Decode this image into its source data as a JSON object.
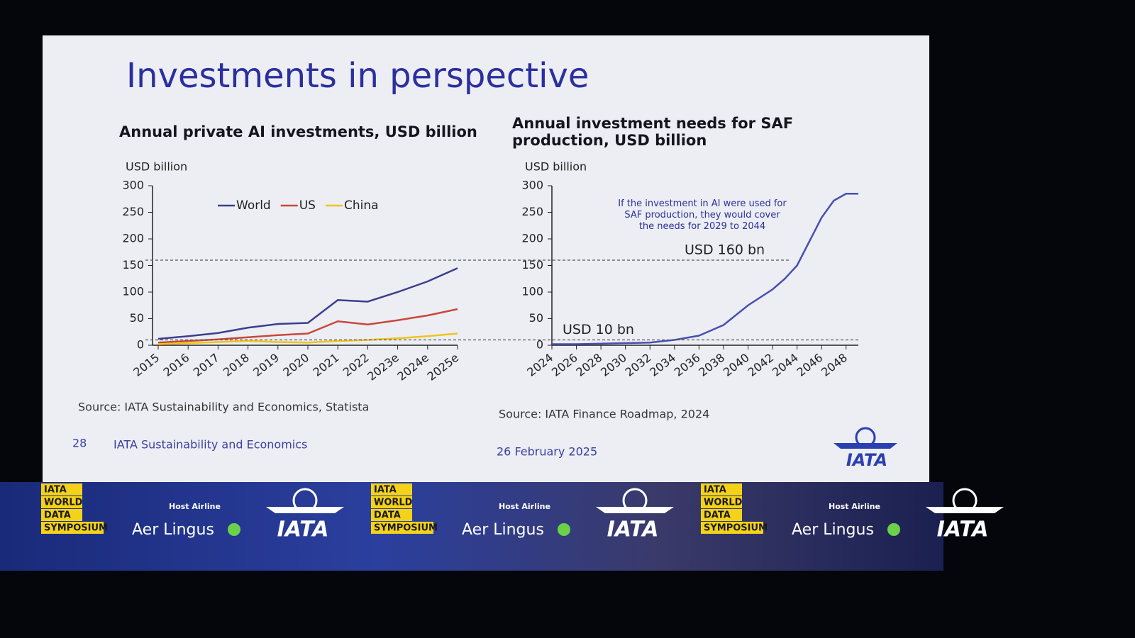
{
  "title": "Investments in perspective",
  "chart_data": [
    {
      "type": "line",
      "title": "Annual private AI investments, USD billion",
      "y_label": "USD billion",
      "categories": [
        "2015",
        "2016",
        "2017",
        "2018",
        "2019",
        "2020",
        "2021",
        "2022",
        "2023e",
        "2024e",
        "2025e"
      ],
      "series": [
        {
          "name": "World",
          "color": "#3b3f8c",
          "values": [
            12,
            17,
            23,
            33,
            40,
            42,
            85,
            82,
            100,
            120,
            145
          ]
        },
        {
          "name": "US",
          "color": "#c9473a",
          "values": [
            5,
            8,
            11,
            15,
            19,
            22,
            45,
            39,
            47,
            56,
            68
          ]
        },
        {
          "name": "China",
          "color": "#f0c419",
          "values": [
            2,
            4,
            6,
            8,
            6,
            5,
            8,
            10,
            13,
            17,
            22
          ]
        }
      ],
      "ylim": [
        0,
        300
      ],
      "yticks": [
        0,
        50,
        100,
        150,
        200,
        250,
        300
      ],
      "grid": false,
      "legend": "top",
      "source": "Source: IATA Sustainability and Economics, Statista"
    },
    {
      "type": "line",
      "title": "Annual investment needs for SAF production, USD billion",
      "y_label": "USD billion",
      "x": [
        2024,
        2026,
        2028,
        2030,
        2032,
        2034,
        2036,
        2037,
        2038,
        2040,
        2042,
        2043,
        2044,
        2045,
        2046,
        2047,
        2048,
        2049
      ],
      "values": [
        2,
        2,
        3,
        4,
        5,
        10,
        18,
        28,
        38,
        75,
        105,
        125,
        150,
        195,
        240,
        272,
        285,
        285
      ],
      "color": "#4a4fb0",
      "xlim": [
        2024,
        2049
      ],
      "xticks": [
        2024,
        2026,
        2028,
        2030,
        2032,
        2034,
        2036,
        2038,
        2040,
        2042,
        2044,
        2046,
        2048
      ],
      "ylim": [
        0,
        300
      ],
      "yticks": [
        0,
        50,
        100,
        150,
        200,
        250,
        300
      ],
      "grid": false,
      "reference_lines": [
        {
          "value": 160,
          "label": "USD 160 bn"
        },
        {
          "value": 10,
          "label": "USD 10 bn"
        }
      ],
      "annotation": "If the investment in AI were used for SAF production, they would cover the needs for 2029 to 2044",
      "source": "Source: IATA Finance Roadmap, 2024"
    }
  ],
  "footer": {
    "page": "28",
    "org": "IATA Sustainability and Economics",
    "date": "26 February 2025",
    "logo": "IATA"
  },
  "banner": {
    "event": [
      "IATA",
      "WORLD",
      "DATA",
      "SYMPOSIUM"
    ],
    "host_label": "Host Airline",
    "host": "Aer Lingus",
    "logo": "IATA"
  }
}
